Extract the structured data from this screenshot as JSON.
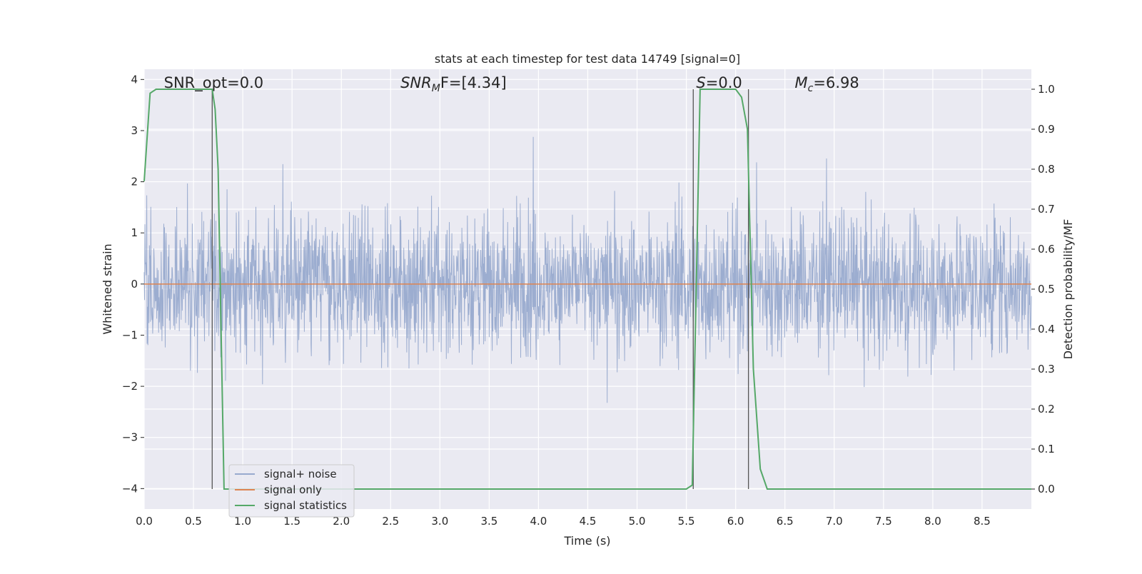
{
  "chart_data": {
    "type": "line",
    "title": "stats at each timestep for test data 14749 [signal=0]",
    "xlabel": "Time (s)",
    "ylabel_left": "Whitened strain",
    "ylabel_right": "Detection probability/MF",
    "xlim": [
      0.0,
      9.0
    ],
    "ylim_left": [
      -4.4,
      4.2
    ],
    "ylim_right": [
      -0.05,
      1.05
    ],
    "grid": true,
    "legend_placement": "lower-left",
    "x_ticks": [
      "0.0",
      "0.5",
      "1.0",
      "1.5",
      "2.0",
      "2.5",
      "3.0",
      "3.5",
      "4.0",
      "4.5",
      "5.0",
      "5.5",
      "6.0",
      "6.5",
      "7.0",
      "7.5",
      "8.0",
      "8.5"
    ],
    "y_ticks_left": [
      "4",
      "3",
      "2",
      "1",
      "0",
      "−1",
      "−2",
      "−3",
      "−4"
    ],
    "y_ticks_right": [
      "1.0",
      "0.9",
      "0.8",
      "0.7",
      "0.6",
      "0.5",
      "0.4",
      "0.3",
      "0.2",
      "0.1",
      "0.0"
    ],
    "annotations": [
      {
        "id": "snr-opt",
        "text": "SNR_opt=0.0",
        "x": 0.2
      },
      {
        "id": "snr-mf",
        "text": "SNR",
        "sub": "M",
        "rest": "F=[4.34]",
        "x": 2.6,
        "italic": true
      },
      {
        "id": "s-stat",
        "text": "S",
        "rest": "=0.0",
        "x": 5.6,
        "italic": true
      },
      {
        "id": "mc",
        "text": "M",
        "sub": "c",
        "rest": "=6.98",
        "x": 6.6,
        "italic": true
      }
    ],
    "vertical_lines": [
      0.69,
      5.57,
      6.13
    ],
    "series": [
      {
        "name": "signal+ noise",
        "axis": "left",
        "color": "#98aace",
        "kind": "noise",
        "envelope": {
          "typical": 1.6,
          "peak": 3.3
        }
      },
      {
        "name": "signal only",
        "axis": "left",
        "color": "#dd8452",
        "kind": "constant",
        "value": 0.0
      },
      {
        "name": "signal statistics",
        "axis": "right",
        "color": "#55a868",
        "kind": "line",
        "x": [
          0.0,
          0.06,
          0.12,
          0.2,
          0.3,
          0.5,
          0.69,
          0.72,
          0.75,
          0.78,
          0.81,
          0.9,
          1.5,
          3.0,
          5.0,
          5.5,
          5.56,
          5.6,
          5.64,
          5.7,
          5.8,
          6.0,
          6.06,
          6.12,
          6.18,
          6.25,
          6.32,
          6.5,
          7.0,
          8.0,
          9.0
        ],
        "y": [
          0.77,
          0.99,
          1.0,
          1.0,
          1.0,
          1.0,
          1.0,
          0.95,
          0.8,
          0.4,
          0.0,
          0.0,
          0.0,
          0.0,
          0.0,
          0.0,
          0.01,
          0.5,
          1.0,
          1.0,
          1.0,
          1.0,
          0.98,
          0.9,
          0.3,
          0.05,
          0.0,
          0.0,
          0.0,
          0.0,
          0.0
        ]
      }
    ]
  },
  "legend": {
    "items": [
      {
        "label": "signal+ noise",
        "color": "#98aace"
      },
      {
        "label": "signal only",
        "color": "#dd8452"
      },
      {
        "label": "signal statistics",
        "color": "#55a868"
      }
    ]
  }
}
